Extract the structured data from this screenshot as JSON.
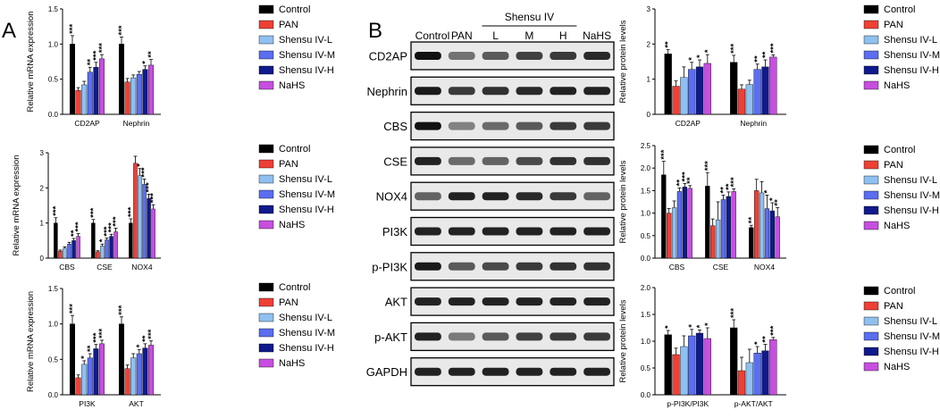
{
  "panel_labels": {
    "a": "A",
    "b": "B"
  },
  "colors": {
    "Control": "#000000",
    "PAN": "#ee4035",
    "Shensu IV-L": "#8fc0f0",
    "Shensu IV-M": "#5b6ef0",
    "Shensu IV-H": "#101a8c",
    "NaHS": "#c64fe0"
  },
  "legend": [
    "Control",
    "PAN",
    "Shensu IV-L",
    "Shensu IV-M",
    "Shensu IV-H",
    "NaHS"
  ],
  "blot": {
    "lanes": [
      "Control",
      "PAN",
      "L",
      "M",
      "H",
      "NaHS"
    ],
    "group_label": "Shensu IV",
    "proteins": [
      "CD2AP",
      "Nephrin",
      "CBS",
      "CSE",
      "NOX4",
      "PI3K",
      "p-PI3K",
      "AKT",
      "p-AKT",
      "GAPDH"
    ],
    "band_intensity": [
      [
        1.0,
        0.4,
        0.55,
        0.7,
        0.75,
        0.85
      ],
      [
        0.95,
        0.75,
        0.8,
        0.85,
        0.9,
        0.9
      ],
      [
        1.0,
        0.3,
        0.45,
        0.55,
        0.75,
        0.75
      ],
      [
        0.9,
        0.45,
        0.5,
        0.65,
        0.8,
        0.8
      ],
      [
        0.5,
        0.9,
        0.9,
        0.85,
        0.75,
        0.5
      ],
      [
        0.9,
        0.9,
        0.9,
        0.9,
        0.9,
        0.9
      ],
      [
        0.95,
        0.55,
        0.65,
        0.75,
        0.8,
        0.8
      ],
      [
        0.9,
        0.9,
        0.9,
        0.9,
        0.9,
        0.9
      ],
      [
        0.9,
        0.35,
        0.55,
        0.7,
        0.75,
        0.75
      ],
      [
        0.9,
        0.9,
        0.9,
        0.9,
        0.9,
        0.9
      ]
    ]
  },
  "chart_data": [
    {
      "id": "a1",
      "type": "bar",
      "ylabel": "Relative mRNA expression",
      "ylim": [
        0,
        1.5
      ],
      "yticks": [
        "0.0",
        "0.5",
        "1.0",
        "1.5"
      ],
      "ytick_values": [
        0,
        0.5,
        1.0,
        1.5
      ],
      "categories": [
        "CD2AP",
        "Nephrin"
      ],
      "series": [
        {
          "name": "Control",
          "values": [
            1.0,
            1.0
          ],
          "errors": [
            0.12,
            0.1
          ],
          "sig": [
            "***",
            "***"
          ]
        },
        {
          "name": "PAN",
          "values": [
            0.34,
            0.46
          ],
          "errors": [
            0.04,
            0.05
          ],
          "sig": [
            "",
            ""
          ]
        },
        {
          "name": "Shensu IV-L",
          "values": [
            0.42,
            0.52
          ],
          "errors": [
            0.05,
            0.04
          ],
          "sig": [
            "",
            ""
          ]
        },
        {
          "name": "Shensu IV-M",
          "values": [
            0.6,
            0.57
          ],
          "errors": [
            0.07,
            0.04
          ],
          "sig": [
            "**",
            ""
          ]
        },
        {
          "name": "Shensu IV-H",
          "values": [
            0.67,
            0.64
          ],
          "errors": [
            0.07,
            0.05
          ],
          "sig": [
            "***",
            "*"
          ]
        },
        {
          "name": "NaHS",
          "values": [
            0.79,
            0.7
          ],
          "errors": [
            0.06,
            0.08
          ],
          "sig": [
            "***",
            "**"
          ]
        }
      ]
    },
    {
      "id": "a2",
      "type": "bar",
      "ylabel": "Relative mRNA expression",
      "ylim": [
        0,
        3
      ],
      "yticks": [
        "0",
        "1",
        "2",
        "3"
      ],
      "ytick_values": [
        0,
        1,
        2,
        3
      ],
      "categories": [
        "CBS",
        "CSE",
        "NOX4"
      ],
      "series": [
        {
          "name": "Control",
          "values": [
            1.0,
            1.0,
            1.0
          ],
          "errors": [
            0.15,
            0.1,
            0.12
          ],
          "sig": [
            "***",
            "***",
            "***"
          ]
        },
        {
          "name": "PAN",
          "values": [
            0.2,
            0.18,
            2.7
          ],
          "errors": [
            0.03,
            0.03,
            0.2
          ],
          "sig": [
            "",
            "",
            ""
          ]
        },
        {
          "name": "Shensu IV-L",
          "values": [
            0.28,
            0.35,
            2.35
          ],
          "errors": [
            0.04,
            0.05,
            0.2
          ],
          "sig": [
            "",
            "*",
            "*"
          ]
        },
        {
          "name": "Shensu IV-M",
          "values": [
            0.4,
            0.52,
            2.1
          ],
          "errors": [
            0.05,
            0.05,
            0.15
          ],
          "sig": [
            "",
            "***",
            "***"
          ]
        },
        {
          "name": "Shensu IV-H",
          "values": [
            0.5,
            0.62,
            1.7
          ],
          "errors": [
            0.06,
            0.06,
            0.12
          ],
          "sig": [
            "**",
            "***",
            "***"
          ]
        },
        {
          "name": "NaHS",
          "values": [
            0.62,
            0.75,
            1.4
          ],
          "errors": [
            0.08,
            0.1,
            0.12
          ],
          "sig": [
            "***",
            "***",
            "***"
          ]
        }
      ]
    },
    {
      "id": "a3",
      "type": "bar",
      "ylabel": "Relative mRNA expression",
      "ylim": [
        0,
        1.5
      ],
      "yticks": [
        "0.0",
        "0.5",
        "1.0",
        "1.5"
      ],
      "ytick_values": [
        0,
        0.5,
        1.0,
        1.5
      ],
      "categories": [
        "PI3K",
        "AKT"
      ],
      "series": [
        {
          "name": "Control",
          "values": [
            1.0,
            1.0
          ],
          "errors": [
            0.12,
            0.1
          ],
          "sig": [
            "***",
            "***"
          ]
        },
        {
          "name": "PAN",
          "values": [
            0.24,
            0.37
          ],
          "errors": [
            0.04,
            0.05
          ],
          "sig": [
            "",
            ""
          ]
        },
        {
          "name": "Shensu IV-L",
          "values": [
            0.43,
            0.52
          ],
          "errors": [
            0.05,
            0.06
          ],
          "sig": [
            "*",
            ""
          ]
        },
        {
          "name": "Shensu IV-M",
          "values": [
            0.52,
            0.58
          ],
          "errors": [
            0.06,
            0.06
          ],
          "sig": [
            "**",
            "*"
          ]
        },
        {
          "name": "Shensu IV-H",
          "values": [
            0.65,
            0.66
          ],
          "errors": [
            0.06,
            0.06
          ],
          "sig": [
            "***",
            "**"
          ]
        },
        {
          "name": "NaHS",
          "values": [
            0.72,
            0.7
          ],
          "errors": [
            0.05,
            0.06
          ],
          "sig": [
            "***",
            "***"
          ]
        }
      ]
    },
    {
      "id": "b1",
      "type": "bar",
      "ylabel": "Relative protein levels",
      "ylim": [
        0,
        3
      ],
      "yticks": [
        "0",
        "1",
        "2",
        "3"
      ],
      "ytick_values": [
        0,
        1,
        2,
        3
      ],
      "categories": [
        "CD2AP",
        "Nephrin"
      ],
      "series": [
        {
          "name": "Control",
          "values": [
            1.72,
            1.48
          ],
          "errors": [
            0.12,
            0.2
          ],
          "sig": [
            "**",
            "***"
          ]
        },
        {
          "name": "PAN",
          "values": [
            0.8,
            0.72
          ],
          "errors": [
            0.15,
            0.12
          ],
          "sig": [
            "",
            ""
          ]
        },
        {
          "name": "Shensu IV-L",
          "values": [
            1.05,
            0.85
          ],
          "errors": [
            0.3,
            0.12
          ],
          "sig": [
            "",
            ""
          ]
        },
        {
          "name": "Shensu IV-M",
          "values": [
            1.28,
            1.28
          ],
          "errors": [
            0.2,
            0.15
          ],
          "sig": [
            "*",
            "**"
          ]
        },
        {
          "name": "Shensu IV-H",
          "values": [
            1.35,
            1.35
          ],
          "errors": [
            0.2,
            0.2
          ],
          "sig": [
            "*",
            "**"
          ]
        },
        {
          "name": "NaHS",
          "values": [
            1.45,
            1.63
          ],
          "errors": [
            0.25,
            0.06
          ],
          "sig": [
            "*",
            "***"
          ]
        }
      ]
    },
    {
      "id": "b2",
      "type": "bar",
      "ylabel": "Relative protein levels",
      "ylim": [
        0,
        2.5
      ],
      "yticks": [
        "0.0",
        "0.5",
        "1.0",
        "1.5",
        "2.0",
        "2.5"
      ],
      "ytick_values": [
        0,
        0.5,
        1.0,
        1.5,
        2.0,
        2.5
      ],
      "categories": [
        "CBS",
        "CSE",
        "NOX4"
      ],
      "series": [
        {
          "name": "Control",
          "values": [
            1.85,
            1.6,
            0.68
          ],
          "errors": [
            0.3,
            0.3,
            0.05
          ],
          "sig": [
            "***",
            "***",
            "**"
          ]
        },
        {
          "name": "PAN",
          "values": [
            1.0,
            0.72,
            1.5
          ],
          "errors": [
            0.1,
            0.15,
            0.25
          ],
          "sig": [
            "",
            "",
            ""
          ]
        },
        {
          "name": "Shensu IV-L",
          "values": [
            1.12,
            0.85,
            1.45
          ],
          "errors": [
            0.15,
            0.4,
            0.25
          ],
          "sig": [
            "",
            "",
            ""
          ]
        },
        {
          "name": "Shensu IV-M",
          "values": [
            1.48,
            1.3,
            1.1
          ],
          "errors": [
            0.08,
            0.1,
            0.3
          ],
          "sig": [
            "**",
            "**",
            "*"
          ]
        },
        {
          "name": "Shensu IV-H",
          "values": [
            1.58,
            1.37,
            1.05
          ],
          "errors": [
            0.08,
            0.1,
            0.18
          ],
          "sig": [
            "***",
            "**",
            "*"
          ]
        },
        {
          "name": "NaHS",
          "values": [
            1.55,
            1.48,
            0.92
          ],
          "errors": [
            0.06,
            0.06,
            0.2
          ],
          "sig": [
            "**",
            "***",
            "**"
          ]
        }
      ]
    },
    {
      "id": "b3",
      "type": "bar",
      "ylabel": "Relative protein levels",
      "ylim": [
        0,
        2.0
      ],
      "yticks": [
        "0.0",
        "0.5",
        "1.0",
        "1.5",
        "2.0"
      ],
      "ytick_values": [
        0,
        0.5,
        1.0,
        1.5,
        2.0
      ],
      "categories": [
        "p-PI3K/PI3K",
        "p-AKT/AKT"
      ],
      "series": [
        {
          "name": "Control",
          "values": [
            1.12,
            1.25
          ],
          "errors": [
            0.08,
            0.15
          ],
          "sig": [
            "*",
            "***"
          ]
        },
        {
          "name": "PAN",
          "values": [
            0.75,
            0.45
          ],
          "errors": [
            0.12,
            0.25
          ],
          "sig": [
            "",
            ""
          ]
        },
        {
          "name": "Shensu IV-L",
          "values": [
            0.9,
            0.6
          ],
          "errors": [
            0.2,
            0.25
          ],
          "sig": [
            "",
            ""
          ]
        },
        {
          "name": "Shensu IV-M",
          "values": [
            1.1,
            0.78
          ],
          "errors": [
            0.12,
            0.12
          ],
          "sig": [
            "*",
            "*"
          ]
        },
        {
          "name": "Shensu IV-H",
          "values": [
            1.15,
            0.82
          ],
          "errors": [
            0.06,
            0.12
          ],
          "sig": [
            "*",
            "**"
          ]
        },
        {
          "name": "NaHS",
          "values": [
            1.05,
            1.03
          ],
          "errors": [
            0.2,
            0.04
          ],
          "sig": [
            "*",
            "***"
          ]
        }
      ]
    }
  ]
}
